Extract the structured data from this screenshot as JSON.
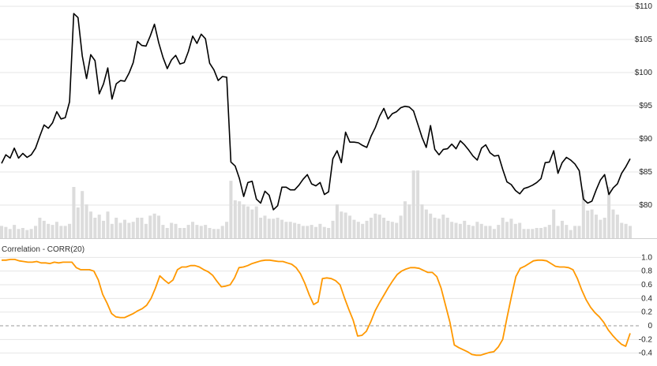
{
  "chart_data": [
    {
      "type": "line+bar",
      "panel": "price",
      "title": "",
      "ylim": [
        75,
        110
      ],
      "y_ticks": [
        80,
        85,
        90,
        95,
        100,
        105,
        110
      ],
      "y_tick_labels": [
        "$80",
        "$85",
        "$90",
        "$95",
        "$100",
        "$105",
        "$110"
      ],
      "grid": true,
      "axis_side": "right",
      "colors": {
        "price": "#000000",
        "volume": "#dcdcdc",
        "grid": "#e6e6e6"
      },
      "series": [
        {
          "kind": "line",
          "values": [
            86.3,
            87.6,
            87.1,
            88.6,
            87.1,
            87.8,
            87.2,
            87.6,
            88.6,
            90.4,
            92.1,
            91.6,
            92.4,
            94.1,
            93.0,
            93.2,
            95.6,
            108.9,
            108.3,
            102.5,
            99.1,
            102.7,
            101.8,
            96.8,
            98.3,
            100.7,
            96.0,
            98.3,
            98.8,
            98.7,
            99.9,
            101.5,
            104.7,
            104.1,
            104.0,
            105.5,
            107.3,
            104.5,
            102.3,
            100.6,
            101.9,
            102.6,
            101.3,
            101.5,
            103.2,
            105.5,
            104.4,
            105.8,
            105.1,
            101.4,
            100.4,
            98.8,
            99.4,
            99.3,
            86.5,
            85.9,
            84.0,
            81.3,
            83.4,
            83.6,
            80.9,
            80.3,
            82.1,
            81.5,
            79.3,
            79.9,
            82.7,
            82.7,
            82.3,
            82.3,
            83.0,
            83.9,
            84.6,
            83.2,
            82.9,
            83.4,
            81.6,
            82.0,
            87.0,
            88.2,
            86.4,
            91.0,
            89.5,
            89.5,
            89.4,
            89.0,
            88.7,
            90.4,
            91.7,
            93.4,
            94.6,
            93.0,
            93.8,
            94.1,
            94.7,
            94.9,
            94.8,
            94.2,
            92.2,
            90.2,
            88.7,
            92.0,
            88.4,
            87.6,
            88.4,
            88.5,
            89.2,
            88.5,
            89.7,
            89.1,
            88.3,
            87.4,
            86.8,
            88.6,
            89.1,
            87.9,
            87.4,
            87.5,
            85.4,
            83.5,
            83.1,
            82.2,
            81.7,
            82.5,
            82.7,
            83.0,
            83.4,
            84.0,
            86.4,
            86.5,
            88.2,
            84.8,
            86.4,
            87.2,
            86.8,
            86.2,
            85.2,
            80.9,
            80.3,
            80.6,
            82.3,
            83.8,
            84.6,
            81.6,
            82.6,
            83.2,
            84.8,
            85.8,
            87.0
          ]
        },
        {
          "kind": "bar",
          "name": "volume",
          "ylim": [
            0,
            1
          ],
          "values": [
            0.12,
            0.11,
            0.09,
            0.13,
            0.09,
            0.1,
            0.08,
            0.09,
            0.12,
            0.2,
            0.17,
            0.14,
            0.13,
            0.16,
            0.12,
            0.12,
            0.14,
            0.5,
            0.3,
            0.46,
            0.33,
            0.26,
            0.2,
            0.23,
            0.17,
            0.26,
            0.14,
            0.2,
            0.15,
            0.18,
            0.15,
            0.16,
            0.2,
            0.2,
            0.14,
            0.22,
            0.24,
            0.22,
            0.13,
            0.1,
            0.15,
            0.14,
            0.1,
            0.1,
            0.13,
            0.16,
            0.13,
            0.12,
            0.13,
            0.1,
            0.09,
            0.09,
            0.12,
            0.16,
            0.56,
            0.37,
            0.36,
            0.33,
            0.31,
            0.28,
            0.31,
            0.2,
            0.22,
            0.19,
            0.19,
            0.2,
            0.18,
            0.16,
            0.16,
            0.15,
            0.14,
            0.12,
            0.12,
            0.13,
            0.11,
            0.14,
            0.11,
            0.1,
            0.17,
            0.33,
            0.26,
            0.25,
            0.22,
            0.18,
            0.16,
            0.14,
            0.17,
            0.2,
            0.24,
            0.23,
            0.2,
            0.17,
            0.16,
            0.15,
            0.22,
            0.36,
            0.33,
            0.66,
            0.66,
            0.33,
            0.28,
            0.24,
            0.2,
            0.19,
            0.23,
            0.2,
            0.16,
            0.15,
            0.14,
            0.17,
            0.13,
            0.12,
            0.16,
            0.14,
            0.12,
            0.12,
            0.09,
            0.13,
            0.2,
            0.16,
            0.19,
            0.14,
            0.15,
            0.09,
            0.09,
            0.09,
            0.1,
            0.1,
            0.11,
            0.13,
            0.28,
            0.12,
            0.17,
            0.13,
            0.08,
            0.12,
            0.12,
            0.47,
            0.27,
            0.28,
            0.23,
            0.18,
            0.2,
            0.5,
            0.28,
            0.23,
            0.15,
            0.14,
            0.12
          ]
        }
      ]
    },
    {
      "type": "line",
      "panel": "indicator",
      "title": "Correlation - CORR(20)",
      "ylim": [
        -0.45,
        1.05
      ],
      "y_ticks": [
        1.0,
        0.8,
        0.6,
        0.4,
        0.2,
        0,
        -0.2,
        -0.4
      ],
      "y_tick_labels": [
        "1.0",
        "0.8",
        "0.6",
        "0.4",
        "0.2",
        "0",
        "-0.2",
        "-0.4"
      ],
      "zero_line": true,
      "grid": true,
      "axis_side": "right",
      "colors": {
        "line": "#ff9800",
        "zero": "#999999",
        "grid": "#e6e6e6"
      },
      "series": [
        {
          "values": [
            0.96,
            0.96,
            0.97,
            0.97,
            0.95,
            0.94,
            0.93,
            0.93,
            0.94,
            0.92,
            0.92,
            0.91,
            0.93,
            0.92,
            0.93,
            0.93,
            0.93,
            0.85,
            0.82,
            0.82,
            0.82,
            0.8,
            0.67,
            0.46,
            0.33,
            0.18,
            0.13,
            0.12,
            0.12,
            0.15,
            0.18,
            0.22,
            0.25,
            0.3,
            0.4,
            0.55,
            0.73,
            0.67,
            0.62,
            0.67,
            0.82,
            0.86,
            0.86,
            0.88,
            0.88,
            0.86,
            0.82,
            0.79,
            0.74,
            0.65,
            0.57,
            0.58,
            0.6,
            0.7,
            0.85,
            0.86,
            0.88,
            0.91,
            0.93,
            0.95,
            0.96,
            0.96,
            0.95,
            0.94,
            0.94,
            0.92,
            0.9,
            0.85,
            0.76,
            0.62,
            0.45,
            0.31,
            0.35,
            0.69,
            0.7,
            0.69,
            0.66,
            0.6,
            0.41,
            0.24,
            0.08,
            -0.15,
            -0.14,
            -0.08,
            0.06,
            0.22,
            0.34,
            0.45,
            0.56,
            0.66,
            0.75,
            0.8,
            0.83,
            0.85,
            0.85,
            0.84,
            0.81,
            0.78,
            0.78,
            0.72,
            0.55,
            0.3,
            0.05,
            -0.28,
            -0.32,
            -0.35,
            -0.38,
            -0.42,
            -0.43,
            -0.43,
            -0.41,
            -0.39,
            -0.38,
            -0.31,
            -0.2,
            0.12,
            0.43,
            0.72,
            0.84,
            0.87,
            0.91,
            0.95,
            0.96,
            0.96,
            0.95,
            0.91,
            0.87,
            0.86,
            0.86,
            0.85,
            0.82,
            0.69,
            0.52,
            0.38,
            0.27,
            0.19,
            0.13,
            0.05,
            -0.06,
            -0.14,
            -0.21,
            -0.27,
            -0.3,
            -0.11
          ]
        }
      ]
    }
  ]
}
